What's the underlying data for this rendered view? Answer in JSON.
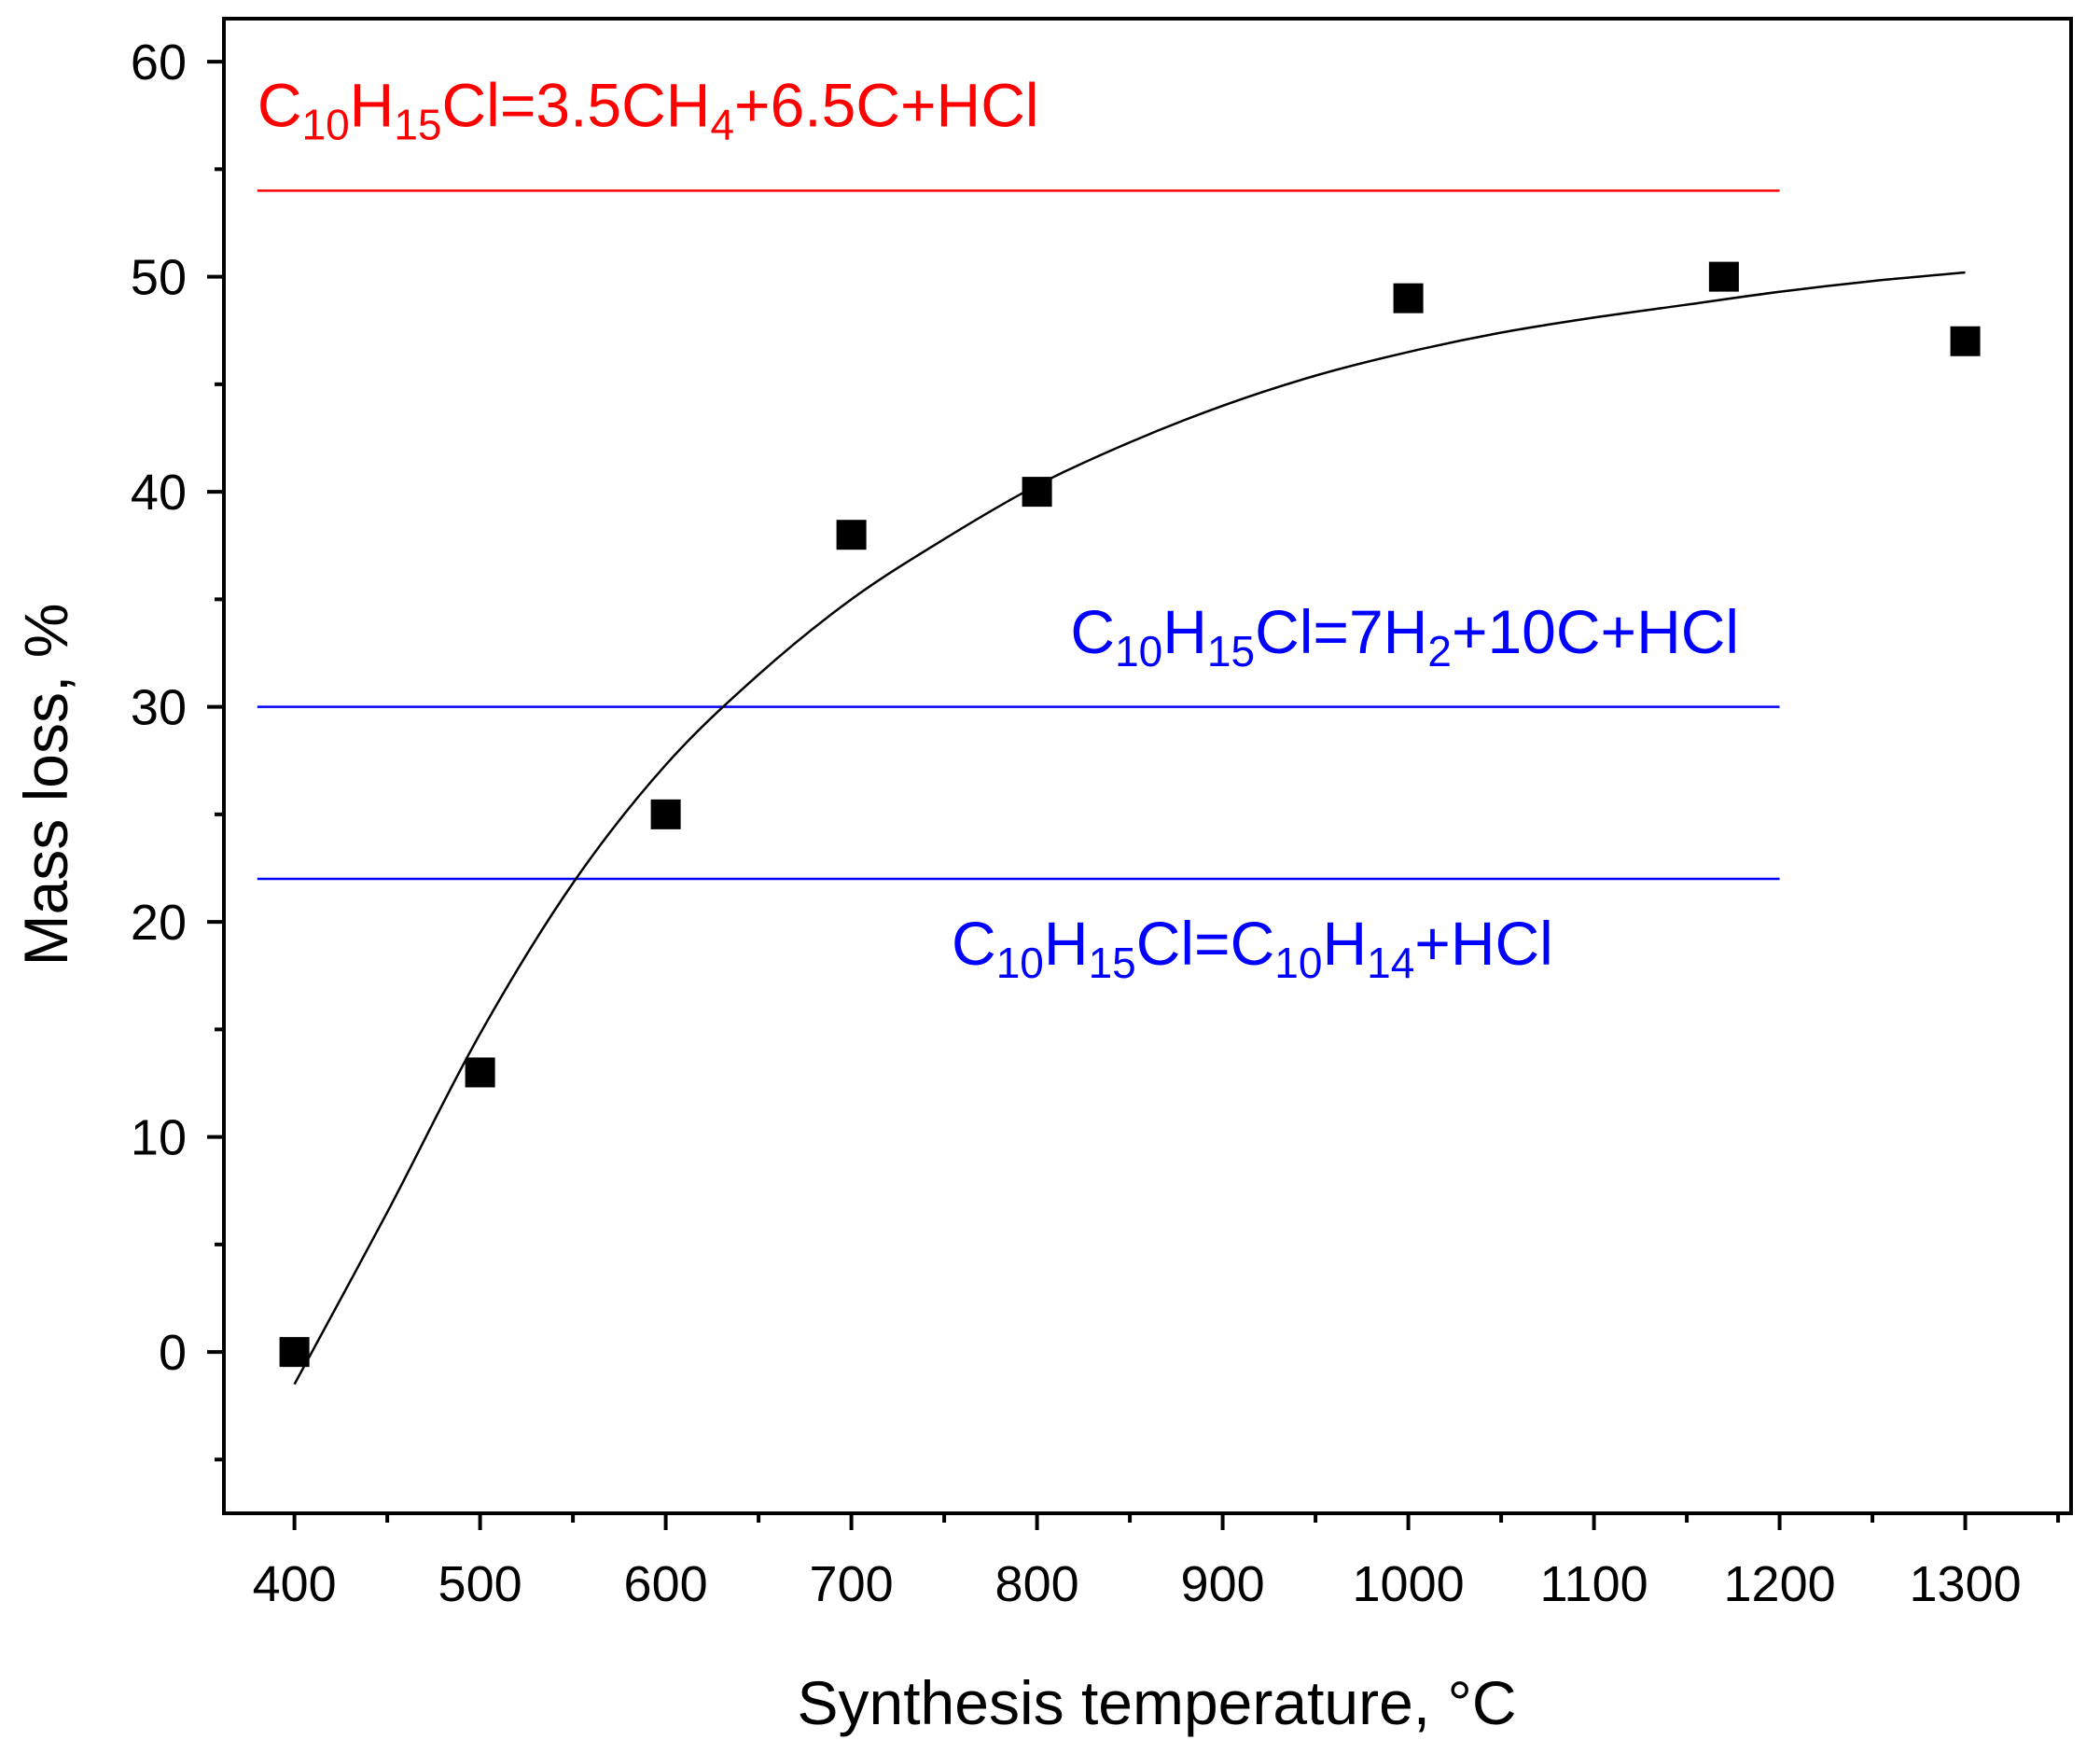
{
  "chart_data": {
    "type": "scatter",
    "xlabel": "Synthesis temperature, °C",
    "ylabel": "Mass loss, %",
    "xlim": [
      362,
      1357
    ],
    "ylim": [
      -7.5,
      62
    ],
    "x_ticks": [
      400,
      500,
      600,
      700,
      800,
      900,
      1000,
      1100,
      1200,
      1300
    ],
    "y_ticks": [
      0,
      10,
      20,
      30,
      40,
      50,
      60
    ],
    "x_minor_step": 50,
    "y_minor_step": 5,
    "grid": false,
    "series": [
      {
        "marker": "square",
        "color": "#000000",
        "points": [
          {
            "x": 400,
            "y": 0
          },
          {
            "x": 500,
            "y": 13
          },
          {
            "x": 600,
            "y": 25
          },
          {
            "x": 700,
            "y": 38
          },
          {
            "x": 800,
            "y": 40
          },
          {
            "x": 1000,
            "y": 49
          },
          {
            "x": 1170,
            "y": 50
          },
          {
            "x": 1300,
            "y": 47
          }
        ]
      }
    ],
    "fit_curve": {
      "type": "exponential-saturation",
      "color": "#000000",
      "x_range": [
        400,
        1300
      ],
      "points": [
        [
          400,
          -1.5
        ],
        [
          450,
          6.5
        ],
        [
          500,
          14.8
        ],
        [
          550,
          21.8
        ],
        [
          600,
          27.3
        ],
        [
          650,
          31.5
        ],
        [
          700,
          35.0
        ],
        [
          750,
          37.8
        ],
        [
          800,
          40.3
        ],
        [
          850,
          42.3
        ],
        [
          900,
          44.0
        ],
        [
          950,
          45.4
        ],
        [
          1000,
          46.5
        ],
        [
          1050,
          47.4
        ],
        [
          1100,
          48.1
        ],
        [
          1150,
          48.7
        ],
        [
          1200,
          49.3
        ],
        [
          1250,
          49.8
        ],
        [
          1300,
          50.2
        ]
      ]
    },
    "reference_lines": [
      {
        "y": 54,
        "x_range": [
          380,
          1200
        ],
        "color": "#ff0000",
        "label": [
          {
            "t": "C"
          },
          {
            "t": "10",
            "sub": true
          },
          {
            "t": "H"
          },
          {
            "t": "15",
            "sub": true
          },
          {
            "t": "Cl=3.5CH"
          },
          {
            "t": "4",
            "sub": true
          },
          {
            "t": "+6.5C+HCl"
          }
        ],
        "label_x": 380,
        "label_y": 57
      },
      {
        "y": 30,
        "x_range": [
          380,
          1200
        ],
        "color": "#0000ff",
        "label": [
          {
            "t": "C"
          },
          {
            "t": "10",
            "sub": true
          },
          {
            "t": "H"
          },
          {
            "t": "15",
            "sub": true
          },
          {
            "t": "Cl=7H"
          },
          {
            "t": "2",
            "sub": true
          },
          {
            "t": "+10C+HCl"
          }
        ],
        "label_x": 818,
        "label_y": 32.5
      },
      {
        "y": 22,
        "x_range": [
          380,
          1200
        ],
        "color": "#0000ff",
        "label": [
          {
            "t": "C"
          },
          {
            "t": "10",
            "sub": true
          },
          {
            "t": "H"
          },
          {
            "t": "15",
            "sub": true
          },
          {
            "t": "Cl=C"
          },
          {
            "t": "10",
            "sub": true
          },
          {
            "t": "H"
          },
          {
            "t": "14",
            "sub": true
          },
          {
            "t": "+HCl"
          }
        ],
        "label_x": 754,
        "label_y": 18
      }
    ]
  }
}
